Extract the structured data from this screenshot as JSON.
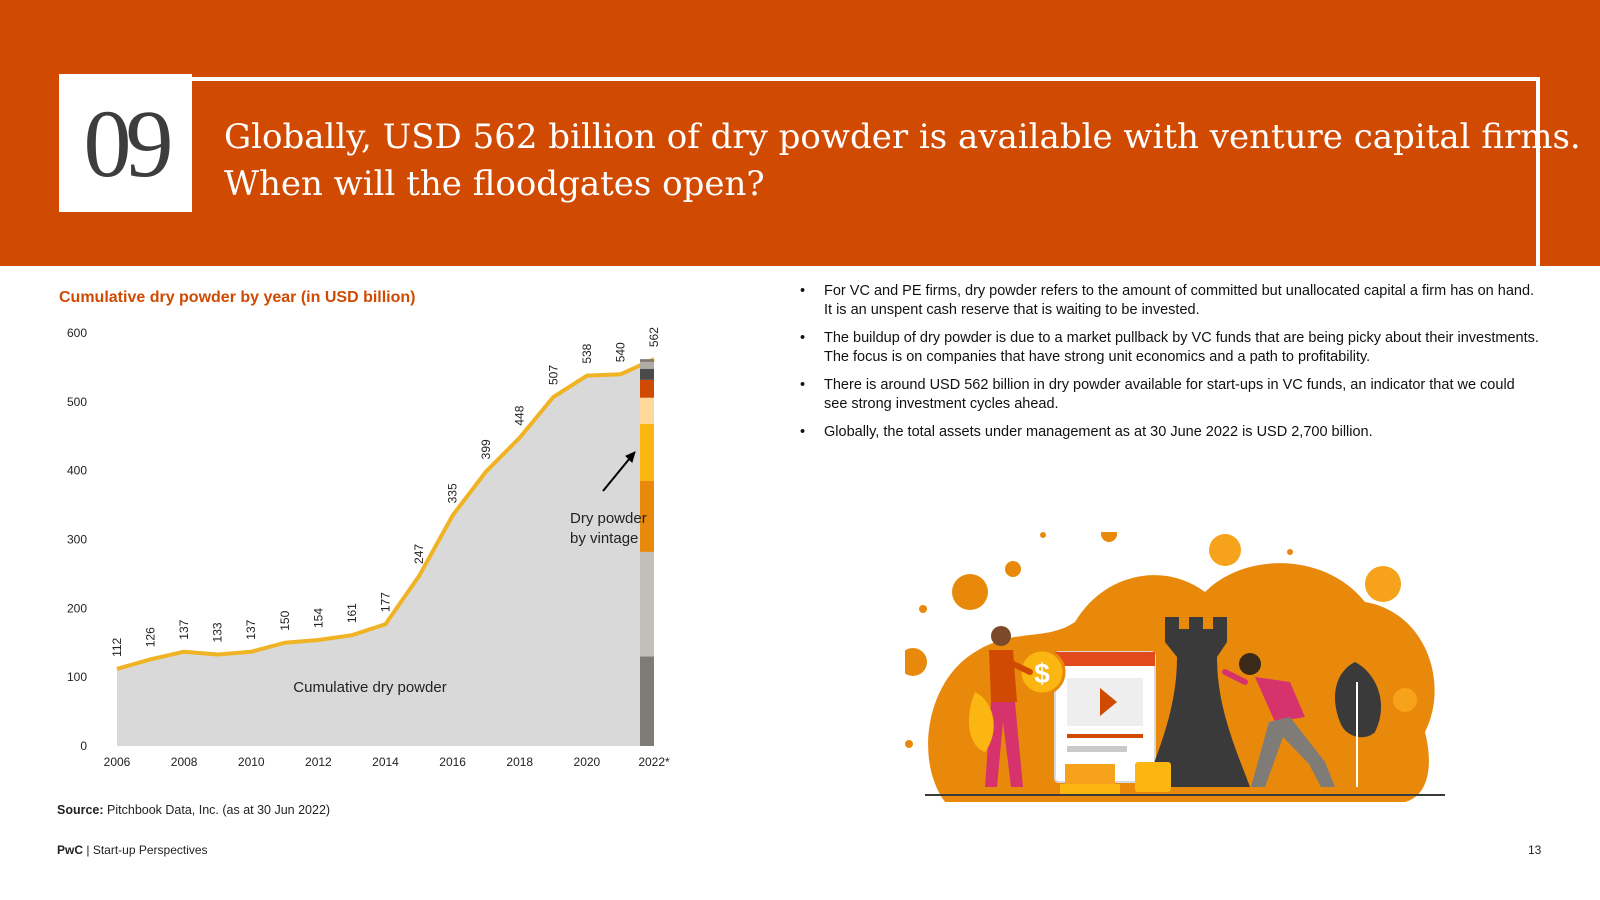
{
  "slide": {
    "number": "09",
    "headline_line1": "Globally, USD 562 billion of dry powder is available with venture capital firms.",
    "headline_line2": "When will the floodgates open?",
    "accent_color": "#d04a02"
  },
  "chart_title": "Cumulative dry powder by year (in USD billion)",
  "chart_data": {
    "type": "area",
    "title": "Cumulative dry powder by year (in USD billion)",
    "x": [
      2006,
      2007,
      2008,
      2009,
      2010,
      2011,
      2012,
      2013,
      2014,
      2015,
      2016,
      2017,
      2018,
      2019,
      2020,
      2021,
      2022
    ],
    "values": [
      112,
      126,
      137,
      133,
      137,
      150,
      154,
      161,
      177,
      247,
      335,
      399,
      448,
      507,
      538,
      540,
      562
    ],
    "x_tick_labels": [
      "2006",
      "2008",
      "2010",
      "2012",
      "2014",
      "2016",
      "2018",
      "2020",
      "2022*"
    ],
    "y_ticks": [
      0,
      100,
      200,
      300,
      400,
      500,
      600
    ],
    "ylim": [
      0,
      600
    ],
    "series_name": "Cumulative dry powder",
    "line_color": "#f0b323",
    "area_color": "#d9d9d9",
    "vintage_label_line1": "Dry powder",
    "vintage_label_line2": "by vintage",
    "vintage_segments": [
      {
        "value": 130,
        "color": "#7f7b76"
      },
      {
        "value": 152,
        "color": "#c2bfb8"
      },
      {
        "value": 103,
        "color": "#e8890c"
      },
      {
        "value": 83,
        "color": "#fbb612"
      },
      {
        "value": 38,
        "color": "#ffd89a"
      },
      {
        "value": 26,
        "color": "#d04a02"
      },
      {
        "value": 16,
        "color": "#4a4a4a"
      },
      {
        "value": 10,
        "color": "#b0aca6"
      },
      {
        "value": 4,
        "color": "#7f7b76"
      }
    ],
    "grid": false
  },
  "bullets": [
    "For VC and PE firms, dry powder refers to the amount of committed but unallocated capital a firm has on hand. It is an unspent cash reserve that is waiting to be invested.",
    "The buildup of dry powder is due to a market pullback by VC funds that are being picky about their investments. The focus is on companies that have strong unit economics and a path to profitability.",
    "There is around USD 562 billion in dry powder available for start-ups in VC funds, an indicator that we could see strong investment cycles ahead.",
    "Globally, the total assets under management as at 30 June 2022 is USD 2,700 billion."
  ],
  "source": {
    "label": "Source:",
    "text": "Pitchbook Data, Inc. (as at 30 Jun 2022)"
  },
  "footer": {
    "brand": "PwC",
    "separator": "|",
    "title": "Start-up Perspectives",
    "page": "13"
  },
  "illustration": {
    "icon": "business-strategy-illustration",
    "coin_symbol": "$"
  }
}
